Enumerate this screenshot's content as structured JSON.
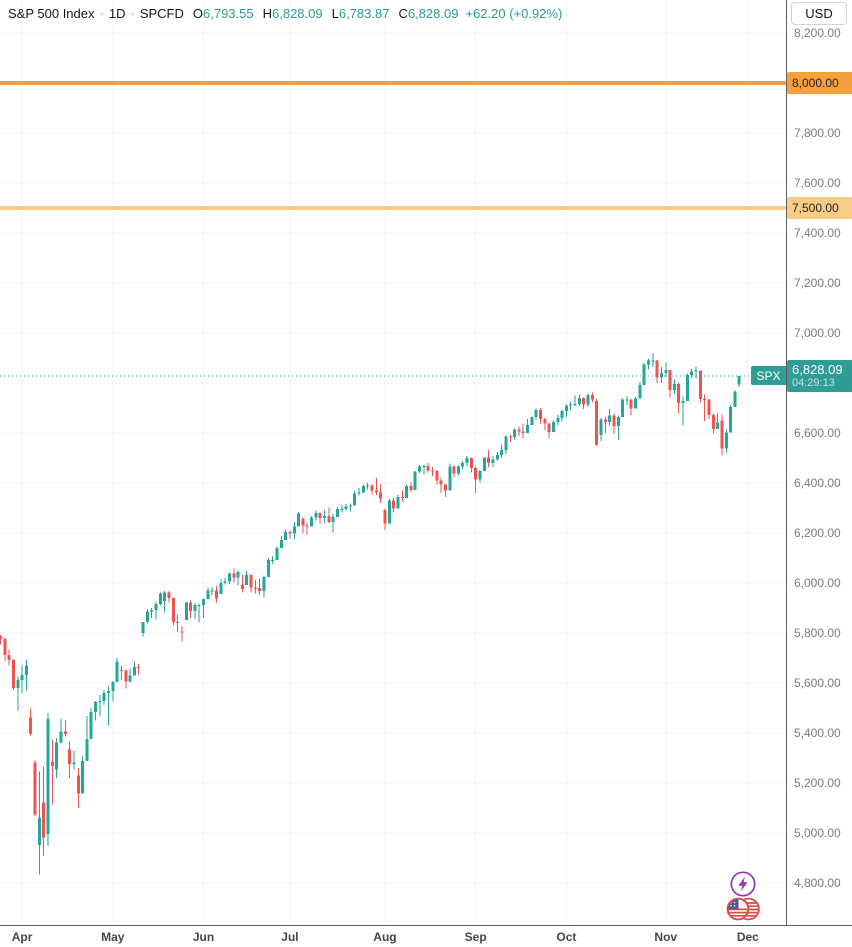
{
  "header": {
    "symbol": "S&P 500 Index",
    "sep": "·",
    "interval": "1D",
    "exchange": "SPCFD",
    "o_label": "O",
    "o_value": "6,793.55",
    "h_label": "H",
    "h_value": "6,828.09",
    "l_label": "L",
    "l_value": "6,783.87",
    "c_label": "C",
    "c_value": "6,828.09",
    "change": "+62.20 (+0.92%)"
  },
  "price_axis": {
    "currency": "USD",
    "tick_labels": [
      {
        "p": 8200,
        "t": "8,200.00"
      },
      {
        "p": 7800,
        "t": "7,800.00"
      },
      {
        "p": 7600,
        "t": "7,600.00"
      },
      {
        "p": 7400,
        "t": "7,400.00"
      },
      {
        "p": 7200,
        "t": "7,200.00"
      },
      {
        "p": 7000,
        "t": "7,000.00"
      },
      {
        "p": 6600,
        "t": "6,600.00"
      },
      {
        "p": 6400,
        "t": "6,400.00"
      },
      {
        "p": 6200,
        "t": "6,200.00"
      },
      {
        "p": 6000,
        "t": "6,000.00"
      },
      {
        "p": 5800,
        "t": "5,800.00"
      },
      {
        "p": 5600,
        "t": "5,600.00"
      },
      {
        "p": 5400,
        "t": "5,400.00"
      },
      {
        "p": 5200,
        "t": "5,200.00"
      },
      {
        "p": 5000,
        "t": "5,000.00"
      },
      {
        "p": 4800,
        "t": "4,800.00"
      }
    ],
    "last_badge": {
      "symbol": "SPX",
      "price": "6,828.09",
      "countdown": "04:29:13"
    }
  },
  "time_axis": {
    "months": [
      {
        "label": "Apr",
        "bar": 5
      },
      {
        "label": "May",
        "bar": 26
      },
      {
        "label": "Jun",
        "bar": 47
      },
      {
        "label": "Jul",
        "bar": 67
      },
      {
        "label": "Aug",
        "bar": 89
      },
      {
        "label": "Sep",
        "bar": 110
      },
      {
        "label": "Oct",
        "bar": 131
      },
      {
        "label": "Nov",
        "bar": 154
      },
      {
        "label": "Dec",
        "bar": 173
      }
    ]
  },
  "levels": [
    {
      "price": 8000,
      "label": "8,000.00",
      "color": "#f59f3d"
    },
    {
      "price": 7500,
      "label": "7,500.00",
      "color": "#f8cc84"
    }
  ],
  "colors": {
    "up": "#26a69a",
    "down": "#ef5350",
    "grid": "#f0f3fa",
    "axis_border": "#5a5e6a",
    "tick_text": "#787b86",
    "month_text": "#42464f",
    "header_text": "#131722",
    "badge_bg": "#2f9c95",
    "lightning_purple": "#9039ae",
    "flag_red": "#d94f43",
    "flag_blue": "#3d5fa8"
  },
  "chart_data": {
    "type": "candlestick",
    "title": "S&P 500 Index",
    "symbol": "SPX",
    "interval": "1D",
    "feed": "SPCFD",
    "currency": "USD",
    "ylim": [
      4620,
      8330
    ],
    "y_tick_step": 200,
    "x_tick_months": [
      "Apr",
      "May",
      "Jun",
      "Jul",
      "Aug",
      "Sep",
      "Oct",
      "Nov",
      "Dec"
    ],
    "price_lines": [
      8000,
      7500
    ],
    "last": {
      "open": 6793.55,
      "high": 6828.09,
      "low": 6783.87,
      "close": 6828.09,
      "change": 62.2,
      "change_pct": 0.92,
      "countdown": "04:29:13"
    },
    "dates": [
      "03-25",
      "03-26",
      "03-27",
      "03-28",
      "03-31",
      "04-01",
      "04-02",
      "04-03",
      "04-04",
      "04-07",
      "04-08",
      "04-09",
      "04-10",
      "04-11",
      "04-14",
      "04-15",
      "04-16",
      "04-17",
      "04-21",
      "04-22",
      "04-23",
      "04-24",
      "04-25",
      "04-28",
      "04-29",
      "04-30",
      "05-01",
      "05-02",
      "05-05",
      "05-06",
      "05-07",
      "05-08",
      "05-09",
      "05-12",
      "05-13",
      "05-14",
      "05-15",
      "05-16",
      "05-19",
      "05-20",
      "05-21",
      "05-22",
      "05-23",
      "05-27",
      "05-28",
      "05-29",
      "05-30",
      "06-02",
      "06-03",
      "06-04",
      "06-05",
      "06-06",
      "06-09",
      "06-10",
      "06-11",
      "06-12",
      "06-13",
      "06-16",
      "06-17",
      "06-18",
      "06-20",
      "06-23",
      "06-24",
      "06-25",
      "06-26",
      "06-27",
      "06-30",
      "07-01",
      "07-02",
      "07-03",
      "07-07",
      "07-08",
      "07-09",
      "07-10",
      "07-11",
      "07-14",
      "07-15",
      "07-16",
      "07-17",
      "07-18",
      "07-21",
      "07-22",
      "07-23",
      "07-24",
      "07-25",
      "07-28",
      "07-29",
      "07-30",
      "07-31",
      "08-01",
      "08-04",
      "08-05",
      "08-06",
      "08-07",
      "08-08",
      "08-11",
      "08-12",
      "08-13",
      "08-14",
      "08-15",
      "08-18",
      "08-19",
      "08-20",
      "08-21",
      "08-22",
      "08-25",
      "08-26",
      "08-27",
      "08-28",
      "08-29",
      "09-02",
      "09-03",
      "09-04",
      "09-05",
      "09-08",
      "09-09",
      "09-10",
      "09-11",
      "09-12",
      "09-15",
      "09-16",
      "09-17",
      "09-18",
      "09-19",
      "09-22",
      "09-23",
      "09-24",
      "09-25",
      "09-26",
      "09-29",
      "09-30",
      "10-01",
      "10-02",
      "10-03",
      "10-06",
      "10-07",
      "10-08",
      "10-09",
      "10-10",
      "10-13",
      "10-14",
      "10-15",
      "10-16",
      "10-17",
      "10-20",
      "10-21",
      "10-22",
      "10-23",
      "10-24",
      "10-27",
      "10-28",
      "10-29",
      "10-30",
      "10-31",
      "11-03",
      "11-04",
      "11-05",
      "11-06",
      "11-07",
      "11-10",
      "11-11",
      "11-12",
      "11-13",
      "11-14",
      "11-17",
      "11-18",
      "11-19",
      "11-20",
      "11-21",
      "11-24",
      "11-25",
      "11-26"
    ],
    "candles": [
      [
        5787,
        5793,
        5754,
        5777
      ],
      [
        5777,
        5783,
        5688,
        5712
      ],
      [
        5712,
        5734,
        5670,
        5693
      ],
      [
        5693,
        5697,
        5572,
        5581
      ],
      [
        5581,
        5627,
        5488,
        5612
      ],
      [
        5612,
        5672,
        5558,
        5633
      ],
      [
        5633,
        5695,
        5571,
        5671
      ],
      [
        5462,
        5499,
        5390,
        5396
      ],
      [
        5283,
        5292,
        5069,
        5074
      ],
      [
        4953,
        5246,
        4835,
        5062
      ],
      [
        5123,
        5267,
        4910,
        4983
      ],
      [
        4997,
        5481,
        4948,
        5457
      ],
      [
        5287,
        5375,
        5115,
        5268
      ],
      [
        5255,
        5381,
        5220,
        5363
      ],
      [
        5363,
        5459,
        5358,
        5406
      ],
      [
        5406,
        5450,
        5386,
        5397
      ],
      [
        5335,
        5367,
        5220,
        5276
      ],
      [
        5276,
        5328,
        5255,
        5283
      ],
      [
        5230,
        5260,
        5101,
        5158
      ],
      [
        5158,
        5309,
        5158,
        5288
      ],
      [
        5288,
        5469,
        5288,
        5376
      ],
      [
        5376,
        5502,
        5376,
        5485
      ],
      [
        5485,
        5528,
        5451,
        5525
      ],
      [
        5525,
        5553,
        5468,
        5529
      ],
      [
        5529,
        5572,
        5512,
        5561
      ],
      [
        5561,
        5588,
        5433,
        5569
      ],
      [
        5569,
        5608,
        5527,
        5604
      ],
      [
        5604,
        5700,
        5604,
        5687
      ],
      [
        5652,
        5668,
        5615,
        5650
      ],
      [
        5650,
        5655,
        5578,
        5607
      ],
      [
        5607,
        5658,
        5602,
        5631
      ],
      [
        5631,
        5687,
        5631,
        5664
      ],
      [
        5664,
        5677,
        5633,
        5660
      ],
      [
        5800,
        5845,
        5786,
        5844
      ],
      [
        5844,
        5897,
        5838,
        5887
      ],
      [
        5887,
        5901,
        5861,
        5893
      ],
      [
        5893,
        5924,
        5854,
        5916
      ],
      [
        5916,
        5962,
        5911,
        5958
      ],
      [
        5928,
        5968,
        5882,
        5963
      ],
      [
        5963,
        5969,
        5923,
        5940
      ],
      [
        5940,
        5943,
        5831,
        5845
      ],
      [
        5845,
        5874,
        5805,
        5842
      ],
      [
        5807,
        5829,
        5767,
        5803
      ],
      [
        5853,
        5925,
        5853,
        5922
      ],
      [
        5922,
        5930,
        5860,
        5888
      ],
      [
        5888,
        5920,
        5858,
        5912
      ],
      [
        5912,
        5917,
        5843,
        5912
      ],
      [
        5912,
        5938,
        5861,
        5936
      ],
      [
        5936,
        5982,
        5936,
        5970
      ],
      [
        5970,
        5984,
        5953,
        5971
      ],
      [
        5971,
        5989,
        5921,
        5939
      ],
      [
        5957,
        6016,
        5957,
        6000
      ],
      [
        6000,
        6021,
        5994,
        6006
      ],
      [
        6006,
        6043,
        5996,
        6039
      ],
      [
        6039,
        6059,
        6002,
        6022
      ],
      [
        6022,
        6050,
        5993,
        6045
      ],
      [
        5994,
        6032,
        5963,
        5977
      ],
      [
        5993,
        6050,
        5993,
        6033
      ],
      [
        6033,
        6035,
        5963,
        5983
      ],
      [
        5983,
        6013,
        5959,
        5981
      ],
      [
        5981,
        6018,
        5952,
        5968
      ],
      [
        5968,
        6030,
        5943,
        6025
      ],
      [
        6025,
        6101,
        6025,
        6092
      ],
      [
        6092,
        6108,
        6076,
        6092
      ],
      [
        6092,
        6146,
        6092,
        6141
      ],
      [
        6141,
        6188,
        6141,
        6173
      ],
      [
        6173,
        6215,
        6173,
        6205
      ],
      [
        6205,
        6210,
        6177,
        6198
      ],
      [
        6198,
        6244,
        6177,
        6227
      ],
      [
        6227,
        6284,
        6227,
        6279
      ],
      [
        6259,
        6262,
        6201,
        6230
      ],
      [
        6230,
        6242,
        6193,
        6226
      ],
      [
        6226,
        6269,
        6226,
        6263
      ],
      [
        6263,
        6290,
        6251,
        6280
      ],
      [
        6280,
        6282,
        6238,
        6260
      ],
      [
        6260,
        6290,
        6240,
        6269
      ],
      [
        6269,
        6302,
        6241,
        6244
      ],
      [
        6244,
        6276,
        6202,
        6264
      ],
      [
        6264,
        6305,
        6264,
        6297
      ],
      [
        6297,
        6315,
        6283,
        6297
      ],
      [
        6297,
        6316,
        6291,
        6306
      ],
      [
        6306,
        6318,
        6286,
        6310
      ],
      [
        6310,
        6368,
        6310,
        6359
      ],
      [
        6359,
        6381,
        6351,
        6363
      ],
      [
        6363,
        6395,
        6360,
        6389
      ],
      [
        6389,
        6401,
        6375,
        6390
      ],
      [
        6390,
        6395,
        6355,
        6371
      ],
      [
        6371,
        6420,
        6352,
        6363
      ],
      [
        6363,
        6396,
        6320,
        6339
      ],
      [
        6293,
        6299,
        6212,
        6238
      ],
      [
        6238,
        6337,
        6238,
        6330
      ],
      [
        6330,
        6340,
        6282,
        6299
      ],
      [
        6299,
        6352,
        6299,
        6345
      ],
      [
        6345,
        6371,
        6327,
        6340
      ],
      [
        6340,
        6395,
        6340,
        6389
      ],
      [
        6389,
        6405,
        6365,
        6373
      ],
      [
        6373,
        6448,
        6373,
        6446
      ],
      [
        6446,
        6472,
        6441,
        6466
      ],
      [
        6466,
        6474,
        6435,
        6469
      ],
      [
        6469,
        6481,
        6442,
        6450
      ],
      [
        6450,
        6464,
        6429,
        6449
      ],
      [
        6449,
        6453,
        6393,
        6411
      ],
      [
        6411,
        6422,
        6360,
        6395
      ],
      [
        6395,
        6397,
        6344,
        6370
      ],
      [
        6370,
        6478,
        6370,
        6467
      ],
      [
        6467,
        6471,
        6424,
        6439
      ],
      [
        6439,
        6470,
        6430,
        6466
      ],
      [
        6466,
        6488,
        6455,
        6481
      ],
      [
        6481,
        6508,
        6466,
        6501
      ],
      [
        6501,
        6503,
        6443,
        6460
      ],
      [
        6460,
        6467,
        6360,
        6415
      ],
      [
        6415,
        6453,
        6402,
        6448
      ],
      [
        6448,
        6503,
        6448,
        6502
      ],
      [
        6502,
        6533,
        6465,
        6481
      ],
      [
        6481,
        6509,
        6464,
        6495
      ],
      [
        6495,
        6525,
        6490,
        6513
      ],
      [
        6513,
        6555,
        6500,
        6532
      ],
      [
        6532,
        6590,
        6516,
        6587
      ],
      [
        6587,
        6595,
        6565,
        6584
      ],
      [
        6584,
        6619,
        6575,
        6615
      ],
      [
        6615,
        6626,
        6588,
        6606
      ],
      [
        6606,
        6637,
        6578,
        6600
      ],
      [
        6600,
        6656,
        6600,
        6632
      ],
      [
        6632,
        6666,
        6632,
        6664
      ],
      [
        6664,
        6699,
        6653,
        6693
      ],
      [
        6693,
        6700,
        6639,
        6656
      ],
      [
        6656,
        6662,
        6612,
        6638
      ],
      [
        6638,
        6641,
        6580,
        6605
      ],
      [
        6605,
        6650,
        6605,
        6644
      ],
      [
        6644,
        6672,
        6630,
        6661
      ],
      [
        6661,
        6694,
        6647,
        6688
      ],
      [
        6688,
        6714,
        6665,
        6711
      ],
      [
        6711,
        6727,
        6692,
        6715
      ],
      [
        6715,
        6750,
        6708,
        6716
      ],
      [
        6716,
        6755,
        6708,
        6740
      ],
      [
        6740,
        6742,
        6697,
        6715
      ],
      [
        6715,
        6758,
        6705,
        6753
      ],
      [
        6753,
        6763,
        6723,
        6735
      ],
      [
        6728,
        6737,
        6550,
        6553
      ],
      [
        6592,
        6661,
        6569,
        6654
      ],
      [
        6654,
        6665,
        6600,
        6645
      ],
      [
        6645,
        6697,
        6630,
        6671
      ],
      [
        6671,
        6679,
        6596,
        6629
      ],
      [
        6629,
        6670,
        6572,
        6664
      ],
      [
        6664,
        6738,
        6664,
        6735
      ],
      [
        6735,
        6749,
        6712,
        6735
      ],
      [
        6735,
        6736,
        6671,
        6699
      ],
      [
        6699,
        6745,
        6699,
        6738
      ],
      [
        6738,
        6807,
        6738,
        6792
      ],
      [
        6792,
        6880,
        6792,
        6875
      ],
      [
        6875,
        6899,
        6855,
        6891
      ],
      [
        6891,
        6920,
        6864,
        6891
      ],
      [
        6891,
        6893,
        6801,
        6822
      ],
      [
        6822,
        6864,
        6800,
        6840
      ],
      [
        6840,
        6882,
        6823,
        6852
      ],
      [
        6852,
        6853,
        6743,
        6772
      ],
      [
        6772,
        6814,
        6757,
        6796
      ],
      [
        6796,
        6800,
        6680,
        6720
      ],
      [
        6720,
        6747,
        6631,
        6729
      ],
      [
        6729,
        6838,
        6729,
        6833
      ],
      [
        6833,
        6858,
        6820,
        6847
      ],
      [
        6847,
        6867,
        6818,
        6851
      ],
      [
        6851,
        6851,
        6720,
        6737
      ],
      [
        6737,
        6754,
        6648,
        6734
      ],
      [
        6734,
        6736,
        6657,
        6672
      ],
      [
        6672,
        6678,
        6598,
        6617
      ],
      [
        6617,
        6678,
        6617,
        6642
      ],
      [
        6651,
        6674,
        6510,
        6539
      ],
      [
        6539,
        6617,
        6522,
        6603
      ],
      [
        6603,
        6713,
        6603,
        6705
      ],
      [
        6705,
        6771,
        6705,
        6766
      ],
      [
        6793.55,
        6828.09,
        6783.87,
        6828.09
      ]
    ]
  }
}
